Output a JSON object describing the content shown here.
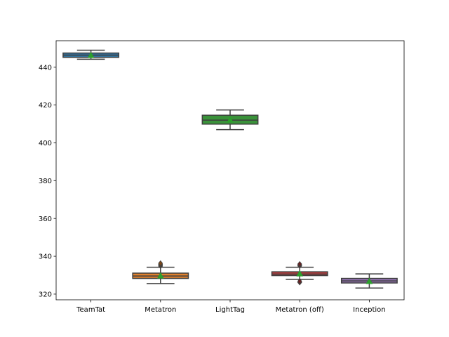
{
  "chart_data": {
    "type": "box",
    "title": "",
    "xlabel": "",
    "ylabel": "",
    "ylim": [
      317,
      454
    ],
    "yticks": [
      320,
      340,
      360,
      380,
      400,
      420,
      440
    ],
    "ytick_labels": [
      "320",
      "340",
      "360",
      "380",
      "400",
      "420",
      "440"
    ],
    "grid": false,
    "categories": [
      "TeamTat",
      "Metatron",
      "LightTag",
      "Metatron (off)",
      "Inception"
    ],
    "boxes": [
      {
        "label": "TeamTat",
        "color": "#3274a1",
        "whisker_low": 444.2,
        "q1": 445.2,
        "median": 446.4,
        "q3": 447.5,
        "whisker_high": 449.0,
        "mean": 446.3,
        "outliers": []
      },
      {
        "label": "Metatron",
        "color": "#e1812c",
        "whisker_low": 325.6,
        "q1": 328.3,
        "median": 329.6,
        "q3": 331.1,
        "whisker_high": 334.2,
        "mean": 329.7,
        "outliers": [
          334.8,
          335.3,
          335.8,
          336.3
        ]
      },
      {
        "label": "LightTag",
        "color": "#3a923a",
        "whisker_low": 407.0,
        "q1": 409.9,
        "median": 412.0,
        "q3": 414.6,
        "whisker_high": 417.4,
        "mean": 412.1,
        "outliers": []
      },
      {
        "label": "Metatron (off)",
        "color": "#c03d3e",
        "whisker_low": 327.8,
        "q1": 329.8,
        "median": 330.6,
        "q3": 331.8,
        "whisker_high": 334.2,
        "mean": 330.8,
        "outliers": [
          326.2,
          326.8,
          334.9,
          335.4,
          335.9
        ]
      },
      {
        "label": "Inception",
        "color": "#9372b2",
        "whisker_low": 323.2,
        "q1": 325.9,
        "median": 327.0,
        "q3": 328.3,
        "whisker_high": 330.7,
        "mean": 326.8,
        "outliers": []
      }
    ],
    "mean_marker_color": "#2ca02c",
    "line_color": "#3f3f3f"
  }
}
